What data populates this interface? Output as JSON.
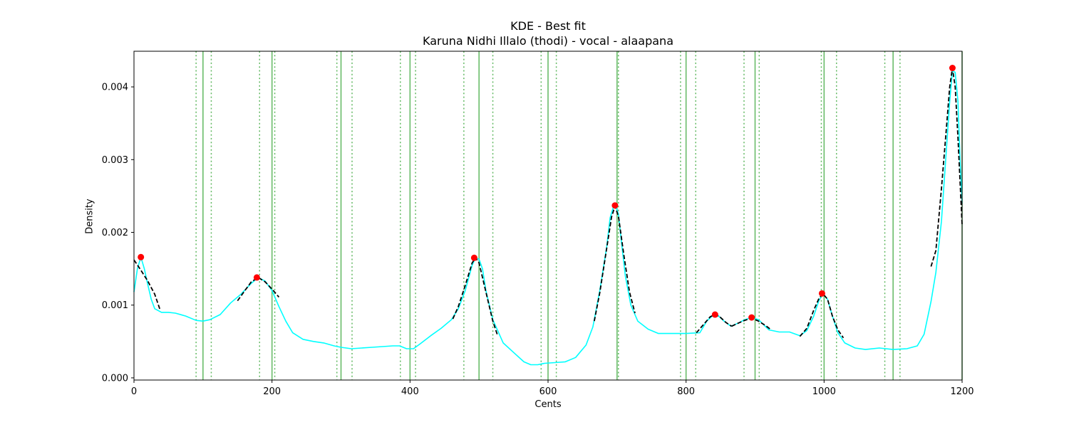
{
  "chart_data": {
    "type": "line",
    "title": "KDE - Best fit",
    "subtitle": "Karuna Nidhi Illalo (thodi) - vocal - alaapana",
    "xlabel": "Cents",
    "ylabel": "Density",
    "xlim": [
      0,
      1200
    ],
    "ylim": [
      -3e-05,
      0.00449
    ],
    "x_ticks": [
      0,
      200,
      400,
      600,
      800,
      1000,
      1200
    ],
    "x_tick_labels": [
      "0",
      "200",
      "400",
      "600",
      "800",
      "1000",
      "1200"
    ],
    "y_ticks": [
      0,
      0.001,
      0.002,
      0.003,
      0.004
    ],
    "y_tick_labels": [
      "0.000",
      "0.001",
      "0.002",
      "0.003",
      "0.004"
    ],
    "grid": false,
    "legend": "none",
    "colors": {
      "kde": "#00ffff",
      "fit": "#000000",
      "peak": "#ff0000",
      "ref_line": "#2ca02c"
    },
    "kde": {
      "x": [
        0,
        5,
        10,
        15,
        20,
        25,
        30,
        40,
        50,
        60,
        75,
        90,
        100,
        110,
        125,
        140,
        155,
        170,
        180,
        190,
        200,
        210,
        220,
        230,
        245,
        260,
        275,
        290,
        300,
        315,
        330,
        345,
        360,
        375,
        385,
        395,
        405,
        415,
        430,
        445,
        460,
        470,
        480,
        490,
        495,
        500,
        505,
        510,
        520,
        535,
        550,
        565,
        575,
        585,
        595,
        610,
        625,
        640,
        655,
        665,
        675,
        685,
        690,
        695,
        698,
        702,
        706,
        712,
        720,
        730,
        745,
        760,
        780,
        800,
        820,
        830,
        840,
        845,
        855,
        865,
        875,
        885,
        895,
        905,
        920,
        935,
        950,
        965,
        975,
        985,
        992,
        998,
        1005,
        1012,
        1020,
        1030,
        1045,
        1060,
        1080,
        1100,
        1120,
        1135,
        1145,
        1155,
        1162,
        1170,
        1177,
        1182,
        1186,
        1190,
        1194,
        1197,
        1200
      ],
      "y": [
        0.00118,
        0.0015,
        0.00166,
        0.0015,
        0.00128,
        0.00108,
        0.00095,
        0.0009,
        0.0009,
        0.00089,
        0.00085,
        0.00079,
        0.00078,
        0.0008,
        0.00087,
        0.00103,
        0.00115,
        0.0013,
        0.00138,
        0.00133,
        0.0012,
        0.00098,
        0.00078,
        0.00062,
        0.00053,
        0.0005,
        0.00048,
        0.00044,
        0.00042,
        0.0004,
        0.00041,
        0.00042,
        0.00043,
        0.00044,
        0.00044,
        0.0004,
        0.0004,
        0.00047,
        0.00058,
        0.00068,
        0.0008,
        0.00095,
        0.0012,
        0.00155,
        0.00165,
        0.00163,
        0.0015,
        0.0012,
        0.0008,
        0.00048,
        0.00035,
        0.00022,
        0.00018,
        0.00018,
        0.0002,
        0.00021,
        0.00022,
        0.00028,
        0.00045,
        0.0007,
        0.0012,
        0.0018,
        0.0022,
        0.00236,
        0.00237,
        0.00225,
        0.0019,
        0.0014,
        0.001,
        0.00078,
        0.00067,
        0.00061,
        0.00061,
        0.00061,
        0.00062,
        0.00078,
        0.00087,
        0.00087,
        0.00078,
        0.00071,
        0.00075,
        0.0008,
        0.00083,
        0.0008,
        0.00066,
        0.00063,
        0.00063,
        0.00058,
        0.00065,
        0.00085,
        0.00105,
        0.00116,
        0.00108,
        0.00085,
        0.00062,
        0.00048,
        0.00041,
        0.00039,
        0.00041,
        0.00039,
        0.0004,
        0.00044,
        0.0006,
        0.00105,
        0.00145,
        0.00215,
        0.0031,
        0.0038,
        0.00422,
        0.0042,
        0.0038,
        0.003,
        0.0024
      ]
    },
    "fits": [
      {
        "x": [
          0,
          10,
          20,
          30,
          38
        ],
        "y": [
          0.00162,
          0.00148,
          0.00133,
          0.00115,
          0.00093
        ]
      },
      {
        "x": [
          150,
          160,
          170,
          180,
          190,
          200,
          210
        ],
        "y": [
          0.00106,
          0.00119,
          0.00132,
          0.00138,
          0.00132,
          0.00122,
          0.00111
        ]
      },
      {
        "x": [
          462,
          470,
          480,
          490,
          495,
          500,
          510,
          520,
          527
        ],
        "y": [
          0.00081,
          0.00098,
          0.00127,
          0.00158,
          0.00165,
          0.00158,
          0.00118,
          0.00078,
          0.00058
        ]
      },
      {
        "x": [
          667,
          675,
          685,
          692,
          697,
          702,
          710,
          718,
          726
        ],
        "y": [
          0.00078,
          0.00117,
          0.00178,
          0.00221,
          0.00236,
          0.00222,
          0.00168,
          0.00118,
          0.00089
        ]
      },
      {
        "x": [
          815,
          825,
          835,
          842,
          850,
          858,
          866
        ],
        "y": [
          0.00062,
          0.00073,
          0.00084,
          0.00087,
          0.00083,
          0.00076,
          0.00071
        ]
      },
      {
        "x": [
          866,
          875,
          885,
          895,
          905,
          915,
          922
        ],
        "y": [
          0.00071,
          0.00075,
          0.00079,
          0.00082,
          0.00078,
          0.00072,
          0.00067
        ]
      },
      {
        "x": [
          965,
          975,
          985,
          992,
          998,
          1005,
          1012,
          1020,
          1028
        ],
        "y": [
          0.00057,
          0.00068,
          0.00093,
          0.00108,
          0.00116,
          0.00108,
          0.00085,
          0.00066,
          0.00055
        ]
      },
      {
        "x": [
          1155,
          1162,
          1170,
          1177,
          1182,
          1186,
          1190,
          1194,
          1198,
          1200
        ],
        "y": [
          0.00153,
          0.00175,
          0.0026,
          0.0034,
          0.004,
          0.00426,
          0.004,
          0.0033,
          0.0025,
          0.0021
        ]
      }
    ],
    "peaks": {
      "x": [
        10,
        178,
        493,
        697,
        842,
        895,
        997,
        1186
      ],
      "y": [
        0.00166,
        0.00138,
        0.00165,
        0.00237,
        0.00087,
        0.00083,
        0.00116,
        0.00426
      ]
    },
    "reference_lines": {
      "solid": [
        100,
        200,
        300,
        400,
        500,
        600,
        700,
        800,
        900,
        1000,
        1100,
        1200
      ],
      "dotted": [
        90,
        112,
        182,
        204,
        294,
        316,
        386,
        408,
        478,
        520,
        590,
        612,
        702,
        792,
        814,
        884,
        906,
        996,
        1018,
        1088,
        1110
      ]
    }
  }
}
